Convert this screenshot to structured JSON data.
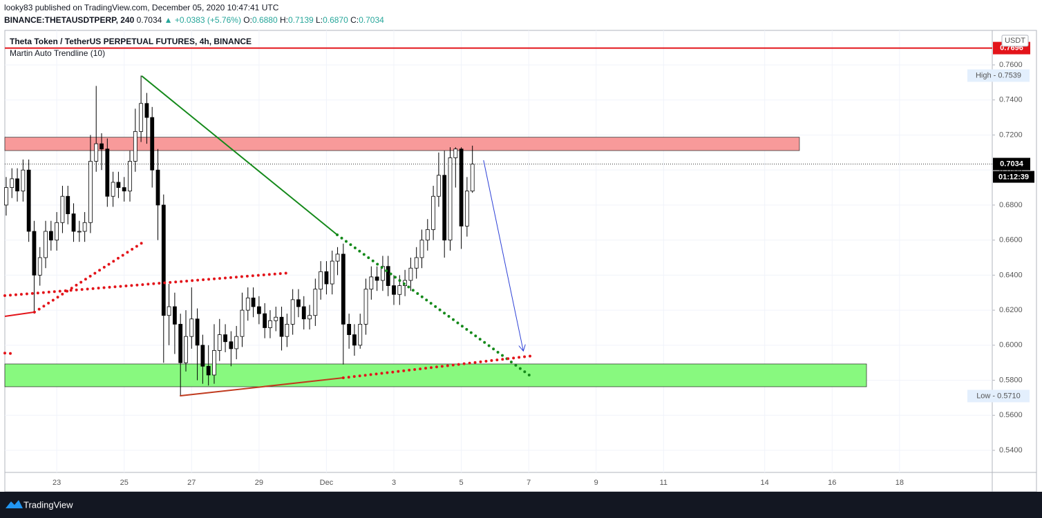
{
  "header": {
    "author_line": "looky83 published on TradingView.com, December 05, 2020 10:47:41 UTC",
    "symbol": "BINANCE:THETAUSDTPERP, 240",
    "last": "0.7034",
    "change": "▲ +0.0383 (+5.76%)",
    "o_label": "O:",
    "o": "0.6880",
    "h_label": "H:",
    "h": "0.7139",
    "l_label": "L:",
    "l": "0.6870",
    "c_label": "C:",
    "c": "0.7034"
  },
  "legend": {
    "title": "Theta Token / TetherUS PERPETUAL FUTURES, 4h, BINANCE",
    "indicator": "Martin Auto Trendline (10)"
  },
  "footer": {
    "brand": "TradingView"
  },
  "chart_data": {
    "type": "candlestick",
    "currency": "USDT",
    "up_color": "#ffffff",
    "down_color": "#000000",
    "xlim": [
      -1.54,
      27.75
    ],
    "ylim": [
      0.5274,
      0.7797
    ],
    "xticks": [
      {
        "value": 0,
        "label": "23"
      },
      {
        "value": 2,
        "label": "25"
      },
      {
        "value": 4,
        "label": "27"
      },
      {
        "value": 6,
        "label": "29"
      },
      {
        "value": 8,
        "label": "Dec"
      },
      {
        "value": 10,
        "label": "3"
      },
      {
        "value": 12,
        "label": "5"
      },
      {
        "value": 14,
        "label": "7"
      },
      {
        "value": 16,
        "label": "9"
      },
      {
        "value": 18,
        "label": "11"
      },
      {
        "value": 21,
        "label": "14"
      },
      {
        "value": 23,
        "label": "16"
      },
      {
        "value": 25,
        "label": "18"
      }
    ],
    "yticks": [
      {
        "value": 0.54,
        "label": "0.5400"
      },
      {
        "value": 0.56,
        "label": "0.5600"
      },
      {
        "value": 0.58,
        "label": "0.5800"
      },
      {
        "value": 0.6,
        "label": "0.6000"
      },
      {
        "value": 0.62,
        "label": "0.6200"
      },
      {
        "value": 0.64,
        "label": "0.6400"
      },
      {
        "value": 0.66,
        "label": "0.6600"
      },
      {
        "value": 0.68,
        "label": "0.6800"
      },
      {
        "value": 0.7,
        "label": "0.7000"
      },
      {
        "value": 0.72,
        "label": "0.7200"
      },
      {
        "value": 0.74,
        "label": "0.7400"
      },
      {
        "value": 0.76,
        "label": "0.7600"
      }
    ],
    "x": [
      -1.5,
      -1.33,
      -1.17,
      -1,
      -0.83,
      -0.67,
      -0.5,
      -0.33,
      -0.17,
      0,
      0.17,
      0.33,
      0.5,
      0.67,
      0.83,
      1,
      1.17,
      1.33,
      1.5,
      1.67,
      1.83,
      2,
      2.17,
      2.33,
      2.5,
      2.67,
      2.83,
      3,
      3.17,
      3.33,
      3.5,
      3.67,
      3.83,
      4,
      4.17,
      4.33,
      4.5,
      4.67,
      4.83,
      5,
      5.17,
      5.33,
      5.5,
      5.67,
      5.83,
      6,
      6.17,
      6.33,
      6.5,
      6.67,
      6.83,
      7,
      7.17,
      7.33,
      7.5,
      7.67,
      7.83,
      8,
      8.17,
      8.33,
      8.5,
      8.67,
      8.83,
      9,
      9.17,
      9.33,
      9.5,
      9.67,
      9.83,
      10,
      10.17,
      10.33,
      10.5,
      10.67,
      10.83,
      11,
      11.17,
      11.33,
      11.5,
      11.67,
      11.83,
      12,
      12.17,
      12.33
    ],
    "open": [
      0.68,
      0.69,
      0.695,
      0.688,
      0.7,
      0.665,
      0.64,
      0.65,
      0.665,
      0.66,
      0.67,
      0.685,
      0.675,
      0.665,
      0.665,
      0.67,
      0.705,
      0.715,
      0.712,
      0.685,
      0.693,
      0.69,
      0.688,
      0.705,
      0.722,
      0.738,
      0.73,
      0.7,
      0.68,
      0.617,
      0.622,
      0.612,
      0.59,
      0.605,
      0.615,
      0.6,
      0.588,
      0.583,
      0.597,
      0.606,
      0.602,
      0.598,
      0.605,
      0.62,
      0.627,
      0.622,
      0.618,
      0.61,
      0.614,
      0.616,
      0.605,
      0.612,
      0.626,
      0.622,
      0.615,
      0.617,
      0.632,
      0.642,
      0.635,
      0.648,
      0.652,
      0.612,
      0.606,
      0.6,
      0.612,
      0.632,
      0.639,
      0.637,
      0.645,
      0.634,
      0.629,
      0.634,
      0.637,
      0.644,
      0.65,
      0.66,
      0.666,
      0.685,
      0.697,
      0.66,
      0.707,
      0.712,
      0.668,
      0.688
    ],
    "high": [
      0.696,
      0.701,
      0.701,
      0.706,
      0.706,
      0.671,
      0.656,
      0.671,
      0.671,
      0.676,
      0.691,
      0.691,
      0.681,
      0.671,
      0.676,
      0.72,
      0.748,
      0.721,
      0.718,
      0.699,
      0.699,
      0.696,
      0.711,
      0.735,
      0.7539,
      0.744,
      0.736,
      0.712,
      0.686,
      0.635,
      0.63,
      0.618,
      0.62,
      0.633,
      0.621,
      0.606,
      0.6,
      0.612,
      0.615,
      0.612,
      0.608,
      0.611,
      0.63,
      0.633,
      0.633,
      0.628,
      0.624,
      0.62,
      0.622,
      0.622,
      0.618,
      0.632,
      0.632,
      0.628,
      0.623,
      0.638,
      0.648,
      0.648,
      0.654,
      0.656,
      0.658,
      0.618,
      0.612,
      0.618,
      0.638,
      0.645,
      0.645,
      0.651,
      0.651,
      0.64,
      0.64,
      0.643,
      0.65,
      0.656,
      0.666,
      0.672,
      0.691,
      0.71,
      0.711,
      0.713,
      0.713,
      0.713,
      0.696,
      0.7139
    ],
    "low": [
      0.674,
      0.684,
      0.682,
      0.682,
      0.659,
      0.618,
      0.634,
      0.644,
      0.654,
      0.654,
      0.664,
      0.669,
      0.659,
      0.659,
      0.659,
      0.664,
      0.699,
      0.7,
      0.679,
      0.679,
      0.684,
      0.682,
      0.682,
      0.699,
      0.716,
      0.715,
      0.69,
      0.66,
      0.59,
      0.6,
      0.595,
      0.571,
      0.585,
      0.598,
      0.58,
      0.578,
      0.577,
      0.578,
      0.591,
      0.596,
      0.588,
      0.592,
      0.599,
      0.614,
      0.616,
      0.612,
      0.604,
      0.604,
      0.608,
      0.597,
      0.599,
      0.606,
      0.616,
      0.609,
      0.609,
      0.611,
      0.626,
      0.629,
      0.629,
      0.64,
      0.589,
      0.598,
      0.594,
      0.598,
      0.606,
      0.626,
      0.631,
      0.631,
      0.628,
      0.623,
      0.623,
      0.628,
      0.631,
      0.638,
      0.644,
      0.654,
      0.66,
      0.679,
      0.65,
      0.654,
      0.69,
      0.655,
      0.662,
      0.687
    ],
    "close": [
      0.69,
      0.695,
      0.688,
      0.7,
      0.665,
      0.64,
      0.65,
      0.665,
      0.66,
      0.67,
      0.685,
      0.675,
      0.665,
      0.665,
      0.67,
      0.705,
      0.715,
      0.712,
      0.685,
      0.693,
      0.69,
      0.688,
      0.705,
      0.722,
      0.738,
      0.73,
      0.7,
      0.68,
      0.617,
      0.622,
      0.612,
      0.59,
      0.605,
      0.615,
      0.6,
      0.588,
      0.583,
      0.597,
      0.606,
      0.602,
      0.598,
      0.605,
      0.62,
      0.627,
      0.622,
      0.618,
      0.61,
      0.614,
      0.616,
      0.605,
      0.612,
      0.626,
      0.622,
      0.615,
      0.617,
      0.632,
      0.642,
      0.635,
      0.648,
      0.652,
      0.612,
      0.606,
      0.6,
      0.612,
      0.632,
      0.639,
      0.637,
      0.645,
      0.634,
      0.629,
      0.634,
      0.637,
      0.644,
      0.65,
      0.66,
      0.666,
      0.685,
      0.697,
      0.66,
      0.707,
      0.712,
      0.668,
      0.688,
      0.7034
    ],
    "zones": [
      {
        "x": [
          -1.54,
          22.03
        ],
        "y": [
          0.7111,
          0.7187
        ],
        "color": "#f89a9a"
      },
      {
        "x": [
          -1.54,
          24.02
        ],
        "y": [
          0.5763,
          0.5893
        ],
        "color": "#88f97f"
      }
    ],
    "hline": {
      "value": 0.7696,
      "label": "0.7696",
      "color": "#e3141a"
    },
    "last_price": {
      "value": 0.7034,
      "label": "0.7034",
      "countdown": "01:12:39"
    },
    "price_labels": [
      {
        "value": 0.7539,
        "label": "High - 0.7539"
      },
      {
        "value": 0.571,
        "label": "Low - 0.5710"
      }
    ],
    "drawings": [
      {
        "points": [
          {
            "x": 2.52,
            "y": 0.7537
          },
          {
            "x": 8.32,
            "y": 0.663
          }
        ],
        "color": "#14891a",
        "style": "solid"
      },
      {
        "points": [
          {
            "x": 8.32,
            "y": 0.663
          },
          {
            "x": 14.04,
            "y": 0.5826
          }
        ],
        "color": "#14891a",
        "style": "dotted"
      },
      {
        "points": [
          {
            "x": -1.54,
            "y": 0.6165
          },
          {
            "x": -0.66,
            "y": 0.6189
          }
        ],
        "color": "#e3141a",
        "style": "solid"
      },
      {
        "points": [
          {
            "x": -0.66,
            "y": 0.6189
          },
          {
            "x": 2.52,
            "y": 0.6583
          }
        ],
        "color": "#e3141a",
        "style": "dotted"
      },
      {
        "points": [
          {
            "x": -1.54,
            "y": 0.6283
          },
          {
            "x": 6.89,
            "y": 0.6413
          }
        ],
        "color": "#e3141a",
        "style": "dotted"
      },
      {
        "points": [
          {
            "x": -1.54,
            "y": 0.5955
          },
          {
            "x": -1.3,
            "y": 0.5952
          }
        ],
        "color": "#e3141a",
        "style": "dotted"
      },
      {
        "points": [
          {
            "x": 3.65,
            "y": 0.5711
          },
          {
            "x": 8.5,
            "y": 0.5814
          }
        ],
        "color": "#c03a1e",
        "style": "solid"
      },
      {
        "points": [
          {
            "x": 8.5,
            "y": 0.5814
          },
          {
            "x": 14.04,
            "y": 0.5938
          }
        ],
        "color": "#e3141a",
        "style": "dotted"
      },
      {
        "points": [
          {
            "x": 12.66,
            "y": 0.7056
          },
          {
            "x": 13.84,
            "y": 0.5967
          }
        ],
        "color": "#2b3fd6",
        "style": "arrow"
      }
    ]
  }
}
